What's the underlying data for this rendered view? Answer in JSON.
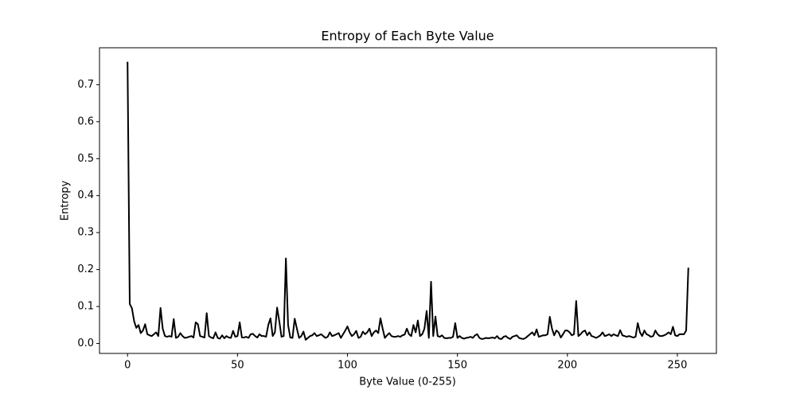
{
  "chart_data": {
    "type": "line",
    "title": "Entropy of Each Byte Value",
    "x_label": "Byte Value (0-255)",
    "y_label": "Entropy",
    "x": [
      0,
      1,
      2,
      3,
      4,
      5,
      6,
      7,
      8,
      9,
      10,
      11,
      12,
      13,
      14,
      15,
      16,
      17,
      18,
      19,
      20,
      21,
      22,
      23,
      24,
      25,
      26,
      27,
      28,
      29,
      30,
      31,
      32,
      33,
      34,
      35,
      36,
      37,
      38,
      39,
      40,
      41,
      42,
      43,
      44,
      45,
      46,
      47,
      48,
      49,
      50,
      51,
      52,
      53,
      54,
      55,
      56,
      57,
      58,
      59,
      60,
      61,
      62,
      63,
      64,
      65,
      66,
      67,
      68,
      69,
      70,
      71,
      72,
      73,
      74,
      75,
      76,
      77,
      78,
      79,
      80,
      81,
      82,
      83,
      84,
      85,
      86,
      87,
      88,
      89,
      90,
      91,
      92,
      93,
      94,
      95,
      96,
      97,
      98,
      99,
      100,
      101,
      102,
      103,
      104,
      105,
      106,
      107,
      108,
      109,
      110,
      111,
      112,
      113,
      114,
      115,
      116,
      117,
      118,
      119,
      120,
      121,
      122,
      123,
      124,
      125,
      126,
      127,
      128,
      129,
      130,
      131,
      132,
      133,
      134,
      135,
      136,
      137,
      138,
      139,
      140,
      141,
      142,
      143,
      144,
      145,
      146,
      147,
      148,
      149,
      150,
      151,
      152,
      153,
      154,
      155,
      156,
      157,
      158,
      159,
      160,
      161,
      162,
      163,
      164,
      165,
      166,
      167,
      168,
      169,
      170,
      171,
      172,
      173,
      174,
      175,
      176,
      177,
      178,
      179,
      180,
      181,
      182,
      183,
      184,
      185,
      186,
      187,
      188,
      189,
      190,
      191,
      192,
      193,
      194,
      195,
      196,
      197,
      198,
      199,
      200,
      201,
      202,
      203,
      204,
      205,
      206,
      207,
      208,
      209,
      210,
      211,
      212,
      213,
      214,
      215,
      216,
      217,
      218,
      219,
      220,
      221,
      222,
      223,
      224,
      225,
      226,
      227,
      228,
      229,
      230,
      231,
      232,
      233,
      234,
      235,
      236,
      237,
      238,
      239,
      240,
      241,
      242,
      243,
      244,
      245,
      246,
      247,
      248,
      249,
      250,
      251,
      252,
      253,
      254,
      255
    ],
    "values": [
      0.762,
      0.107,
      0.095,
      0.06,
      0.042,
      0.05,
      0.028,
      0.035,
      0.052,
      0.025,
      0.022,
      0.02,
      0.025,
      0.03,
      0.02,
      0.096,
      0.04,
      0.02,
      0.018,
      0.02,
      0.018,
      0.066,
      0.015,
      0.018,
      0.028,
      0.02,
      0.015,
      0.016,
      0.018,
      0.02,
      0.016,
      0.057,
      0.052,
      0.02,
      0.018,
      0.016,
      0.082,
      0.02,
      0.016,
      0.014,
      0.03,
      0.015,
      0.013,
      0.022,
      0.014,
      0.02,
      0.016,
      0.015,
      0.034,
      0.018,
      0.02,
      0.057,
      0.016,
      0.016,
      0.018,
      0.015,
      0.025,
      0.026,
      0.02,
      0.016,
      0.025,
      0.02,
      0.02,
      0.018,
      0.05,
      0.068,
      0.02,
      0.03,
      0.097,
      0.06,
      0.018,
      0.02,
      0.23,
      0.05,
      0.016,
      0.015,
      0.067,
      0.04,
      0.015,
      0.02,
      0.032,
      0.01,
      0.015,
      0.02,
      0.022,
      0.028,
      0.02,
      0.022,
      0.025,
      0.02,
      0.015,
      0.018,
      0.03,
      0.02,
      0.022,
      0.025,
      0.028,
      0.015,
      0.025,
      0.035,
      0.046,
      0.03,
      0.02,
      0.025,
      0.034,
      0.015,
      0.018,
      0.032,
      0.025,
      0.03,
      0.04,
      0.02,
      0.03,
      0.035,
      0.028,
      0.068,
      0.04,
      0.015,
      0.022,
      0.028,
      0.02,
      0.018,
      0.018,
      0.02,
      0.018,
      0.022,
      0.024,
      0.04,
      0.025,
      0.02,
      0.05,
      0.03,
      0.062,
      0.02,
      0.025,
      0.04,
      0.088,
      0.015,
      0.167,
      0.02,
      0.073,
      0.02,
      0.018,
      0.022,
      0.015,
      0.014,
      0.015,
      0.015,
      0.018,
      0.055,
      0.015,
      0.02,
      0.015,
      0.013,
      0.015,
      0.016,
      0.018,
      0.015,
      0.022,
      0.025,
      0.015,
      0.012,
      0.013,
      0.015,
      0.014,
      0.015,
      0.016,
      0.014,
      0.02,
      0.013,
      0.012,
      0.018,
      0.02,
      0.015,
      0.012,
      0.018,
      0.02,
      0.022,
      0.015,
      0.013,
      0.012,
      0.015,
      0.02,
      0.025,
      0.03,
      0.022,
      0.038,
      0.018,
      0.02,
      0.022,
      0.022,
      0.025,
      0.072,
      0.04,
      0.022,
      0.035,
      0.03,
      0.016,
      0.025,
      0.035,
      0.035,
      0.03,
      0.022,
      0.025,
      0.115,
      0.02,
      0.025,
      0.032,
      0.035,
      0.022,
      0.03,
      0.02,
      0.018,
      0.015,
      0.018,
      0.022,
      0.03,
      0.02,
      0.022,
      0.025,
      0.02,
      0.025,
      0.022,
      0.02,
      0.036,
      0.022,
      0.02,
      0.018,
      0.02,
      0.018,
      0.016,
      0.018,
      0.055,
      0.03,
      0.02,
      0.035,
      0.025,
      0.022,
      0.018,
      0.02,
      0.035,
      0.025,
      0.02,
      0.02,
      0.022,
      0.025,
      0.03,
      0.025,
      0.045,
      0.022,
      0.02,
      0.025,
      0.025,
      0.025,
      0.035,
      0.205
    ],
    "color": "#000000",
    "xlim": [
      -12.75,
      267.75
    ],
    "xticks": [
      0,
      50,
      100,
      150,
      200,
      250
    ],
    "ylim": [
      -0.027,
      0.8
    ],
    "yticks": [
      {
        "value": 0,
        "label": "0.0"
      },
      0.1,
      0.2,
      0.3,
      0.4,
      0.5,
      0.6,
      0.7
    ]
  }
}
